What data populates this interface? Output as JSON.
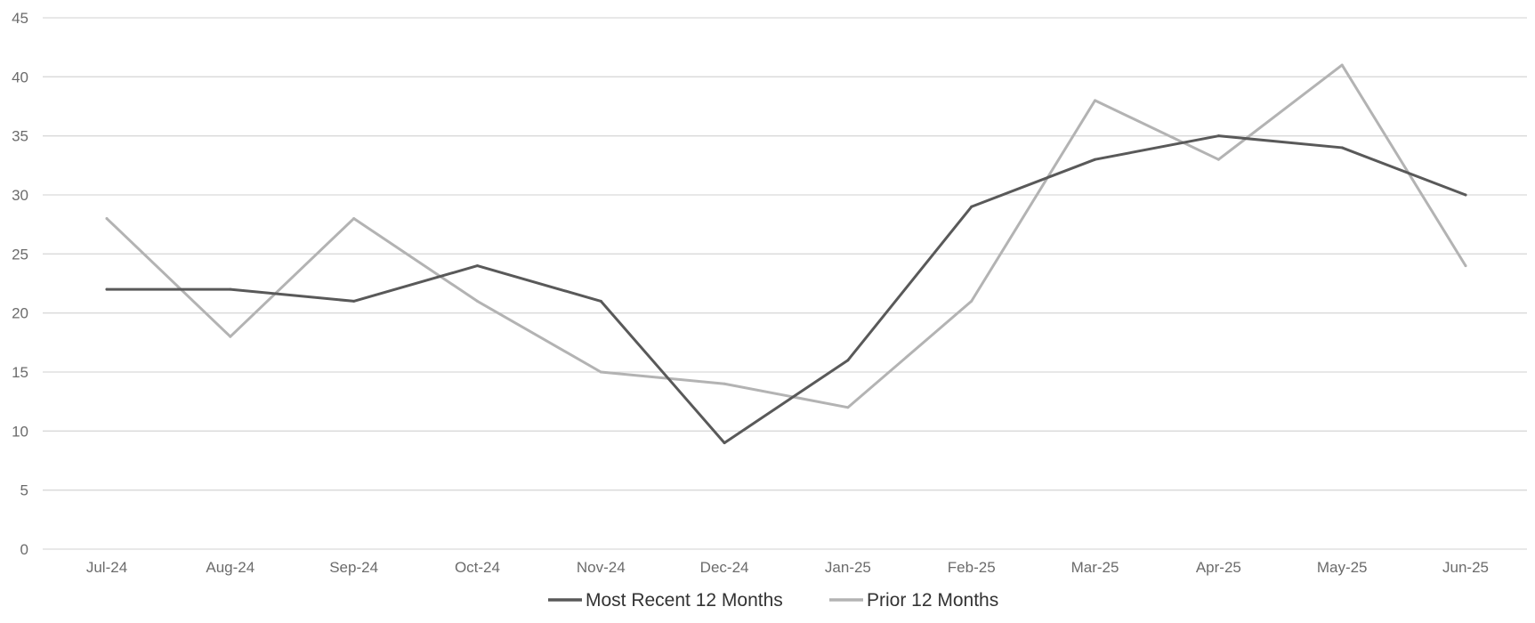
{
  "chart_data": {
    "type": "line",
    "title": "",
    "xlabel": "",
    "ylabel": "",
    "categories": [
      "Jul-24",
      "Aug-24",
      "Sep-24",
      "Oct-24",
      "Nov-24",
      "Dec-24",
      "Jan-25",
      "Feb-25",
      "Mar-25",
      "Apr-25",
      "May-25",
      "Jun-25"
    ],
    "ylim": [
      0,
      45
    ],
    "yticks": [
      0,
      5,
      10,
      15,
      20,
      25,
      30,
      35,
      40,
      45
    ],
    "grid": true,
    "legend_position": "bottom",
    "series": [
      {
        "name": "Most Recent 12 Months",
        "color": "#595959",
        "values": [
          22,
          22,
          21,
          24,
          21,
          9,
          16,
          29,
          33,
          35,
          34,
          30
        ]
      },
      {
        "name": "Prior 12 Months",
        "color": "#b3b3b3",
        "values": [
          28,
          18,
          28,
          21,
          15,
          14,
          12,
          21,
          38,
          33,
          41,
          24
        ]
      }
    ]
  }
}
